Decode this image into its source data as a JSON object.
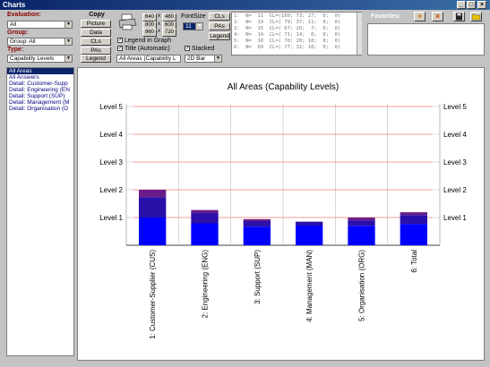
{
  "window": {
    "title": "Charts",
    "minimize": "_",
    "maximize": "□",
    "close": "×"
  },
  "left": {
    "evaluation_label": "Evaluation:",
    "evaluation_value": "All",
    "group_label": "Group:",
    "group_value": "Group: All",
    "type_label": "Type:",
    "type_value": "Capability Levels"
  },
  "buttons": {
    "copy": "Copy",
    "picture": "Picture",
    "data": "Data",
    "cls": "CLs",
    "pas": "PAs",
    "legend": "Legend"
  },
  "sizes": {
    "s1": "640",
    "s2": "480",
    "s3": "800",
    "s4": "600",
    "s5": "960",
    "s6": "720",
    "x": "x"
  },
  "fontsize": {
    "label": "FontSize",
    "value": "11"
  },
  "checks": {
    "legend_in_graph": "Legend in Graph",
    "title_automatic": "Title (Automatic)",
    "stacked": "Stacked"
  },
  "right_buttons": {
    "cls": "CLs",
    "pas": "PAs",
    "legend": "Legend"
  },
  "title_field": "All Areas (Capability L",
  "chart_type": "2D Bar",
  "log_lines": [
    "1:  N=  11  CL=(100; 73; 27;  0;  0)",
    "2:  N=  19  CL=( 79; 37; 11;  0;  0)",
    "3:  N=  15  CL=( 67; 20;  7;  0;  0)",
    "4:  N=  14  CL=( 71; 14;  0;  0;  0)",
    "5:  N=  10  CL=( 70; 20; 10;  0;  0)",
    "6:  N=  69  CL=( 77; 32; 10;  0;  0)"
  ],
  "favorites": {
    "label": "Favorites:"
  },
  "areas": [
    "All Areas",
    "All Answers",
    "Detail: Customer-Supp",
    "Detail: Engineering (EN",
    "Detail: Support (SUP)",
    "Detail: Management (M",
    "Detail: Organisation (O"
  ],
  "chart_data": {
    "type": "bar",
    "title": "All Areas (Capability Levels)",
    "categories": [
      "1: Customer-Supplier (CUS)",
      "2: Engineering (ENG)",
      "3: Support (SUP)",
      "4: Management (MAN)",
      "5: Organisation (ORG)",
      "6: Total"
    ],
    "y_ticks": [
      "Level 5",
      "Level 4",
      "Level 3",
      "Level 2",
      "Level 1"
    ],
    "ylim": [
      0,
      5
    ],
    "stacked": true,
    "series": [
      {
        "values": [
          1.0,
          0.79,
          0.67,
          0.71,
          0.7,
          0.77
        ],
        "color": "#0000ff"
      },
      {
        "values": [
          0.73,
          0.37,
          0.2,
          0.14,
          0.2,
          0.32
        ],
        "color": "#2a0fa8"
      },
      {
        "values": [
          0.27,
          0.11,
          0.07,
          0.0,
          0.1,
          0.1
        ],
        "color": "#6a1b8a"
      }
    ],
    "colors": {
      "gridline": "#bbbbbb",
      "refline": "#ff8080"
    }
  }
}
